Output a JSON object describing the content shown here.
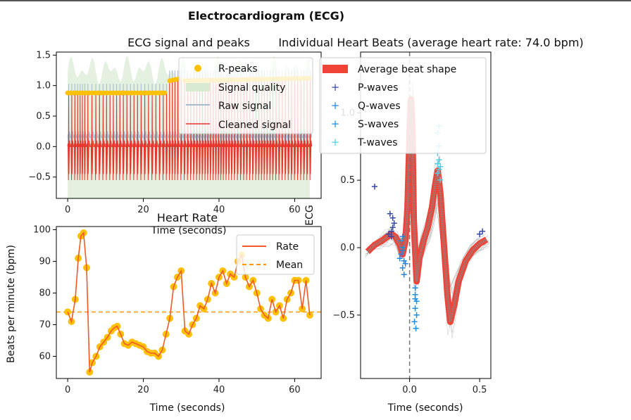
{
  "suptitle": "Electrocardiogram (ECG)",
  "chart_data": [
    {
      "type": "line",
      "title": "ECG signal and peaks",
      "xlabel": "Time (seconds)",
      "ylabel": "",
      "xlim": [
        -3,
        67
      ],
      "ylim": [
        -0.85,
        1.55
      ],
      "xticks": [
        "0",
        "20",
        "40",
        "60"
      ],
      "yticks": [
        "−0.5",
        "0.0",
        "0.5",
        "1.0",
        "1.5"
      ],
      "legend": [
        "R-peaks",
        "Signal quality",
        "Raw signal",
        "Cleaned signal"
      ],
      "legend_position": "upper right",
      "colors": {
        "rpeaks": "#FFC107",
        "quality": "#d9ead3",
        "raw": "#a7bccc",
        "clean": "#e8342a"
      },
      "rpeak_level_segments": [
        {
          "x": [
            0,
            26
          ],
          "y": [
            0.88,
            0.88
          ]
        },
        {
          "x": [
            27,
            30
          ],
          "y": [
            1.08,
            1.12
          ]
        },
        {
          "x": [
            31,
            64
          ],
          "y": [
            1.08,
            1.12
          ]
        }
      ],
      "trough_level": -0.55
    },
    {
      "type": "line",
      "title": "Heart Rate",
      "xlabel": "Time (seconds)",
      "ylabel": "Beats per minute (bpm)",
      "xlim": [
        -3,
        67
      ],
      "ylim": [
        53,
        101
      ],
      "xticks": [
        "0",
        "20",
        "40",
        "60"
      ],
      "yticks": [
        "60",
        "70",
        "80",
        "90",
        "100"
      ],
      "legend": [
        "Rate",
        "Mean"
      ],
      "legend_position": "upper right",
      "mean": 74.0,
      "colors": {
        "rate": "#f05a28",
        "points": "#FFC107",
        "mean": "#ff9800"
      },
      "x": [
        0,
        1,
        2,
        2.8,
        3.5,
        4.2,
        5,
        5.8,
        6.5,
        7.5,
        8.5,
        9.5,
        10.5,
        11.5,
        12.3,
        13.1,
        14,
        15,
        16,
        17,
        18,
        19,
        20,
        21,
        22,
        23,
        24,
        25,
        26,
        27,
        28,
        29,
        30,
        31,
        32,
        33,
        34,
        35,
        36,
        37,
        38,
        39,
        40,
        41,
        42,
        43,
        44,
        45,
        46,
        47,
        48,
        49,
        50,
        51,
        52,
        53,
        54,
        55,
        56,
        57,
        58,
        59,
        60,
        61,
        62,
        63,
        64
      ],
      "values": [
        74,
        71,
        78,
        91,
        98,
        99,
        88,
        55,
        58,
        60,
        63,
        64.5,
        66,
        68,
        69,
        69.5,
        67,
        64,
        63.5,
        64.5,
        64,
        63.5,
        63,
        61.5,
        61,
        61,
        60,
        62,
        67,
        72,
        82,
        85,
        87,
        68,
        67,
        70,
        72,
        76,
        75,
        78,
        83,
        80,
        85,
        87,
        83,
        86,
        85,
        90,
        92,
        85,
        82,
        84,
        80,
        75,
        73,
        72,
        78,
        74,
        76,
        72,
        78,
        80,
        84,
        84,
        75,
        84,
        73
      ]
    },
    {
      "type": "line",
      "title": "Individual Heart Beats (average heart rate: 74.0 bpm)",
      "xlabel": "Time (seconds)",
      "ylabel": "ECG",
      "xlim": [
        -0.35,
        0.58
      ],
      "ylim": [
        -0.97,
        1.45
      ],
      "xticks": [
        "0.0",
        "0.5"
      ],
      "yticks": [
        "−0.5",
        "0.0",
        "0.5",
        "1.0"
      ],
      "legend": [
        "Average beat shape",
        "P-waves",
        "Q-waves",
        "S-waves",
        "T-waves"
      ],
      "legend_position": "upper right",
      "colors": {
        "avg": "#f04438",
        "beats": "#9e9e9e",
        "p": "#3949ab",
        "q": "#1e88e5",
        "s": "#1e90e8",
        "t": "#4dd0e1"
      },
      "avg_x": [
        -0.3,
        -0.25,
        -0.2,
        -0.16,
        -0.13,
        -0.1,
        -0.07,
        -0.05,
        -0.03,
        -0.015,
        0,
        0.01,
        0.02,
        0.03,
        0.05,
        0.07,
        0.1,
        0.13,
        0.16,
        0.18,
        0.2,
        0.22,
        0.24,
        0.27,
        0.29,
        0.32,
        0.35,
        0.4,
        0.45,
        0.5,
        0.55
      ],
      "avg_y": [
        -0.03,
        0.02,
        0.05,
        0.08,
        0.1,
        0.08,
        0.02,
        -0.05,
        0.05,
        0.3,
        0.85,
        1.1,
        0.9,
        0.2,
        -0.25,
        -0.08,
        0.05,
        0.15,
        0.3,
        0.45,
        0.57,
        0.4,
        0.1,
        -0.35,
        -0.55,
        -0.42,
        -0.25,
        -0.1,
        -0.02,
        0.03,
        0.06
      ],
      "p_waves": {
        "x": [
          -0.25,
          -0.14,
          -0.13,
          -0.12,
          -0.11,
          -0.13,
          -0.12,
          -0.15,
          0.5,
          0.52
        ],
        "y": [
          0.45,
          0.25,
          0.12,
          0.15,
          0.18,
          0.08,
          0.22,
          0.1,
          0.1,
          0.12
        ]
      },
      "q_waves": {
        "x": [
          -0.06,
          -0.05,
          -0.04,
          -0.05,
          -0.06,
          -0.04,
          -0.05,
          -0.07,
          -0.03,
          -0.05
        ],
        "y": [
          -0.05,
          0.0,
          -0.1,
          -0.15,
          0.05,
          -0.2,
          0.08,
          -0.08,
          -0.12,
          -0.02
        ]
      },
      "s_waves": {
        "x": [
          0.04,
          0.04,
          0.05,
          0.04,
          0.05,
          0.035,
          0.045,
          0.04
        ],
        "y": [
          -0.3,
          -0.35,
          -0.4,
          -0.45,
          -0.5,
          -0.55,
          -0.6,
          -0.38
        ]
      },
      "t_waves": {
        "x": [
          0.2,
          0.21,
          0.2,
          0.22,
          0.21,
          0.2,
          0.21,
          0.22,
          0.2,
          0.21
        ],
        "y": [
          0.85,
          0.75,
          0.7,
          0.6,
          0.65,
          0.55,
          0.9,
          0.5,
          0.62,
          0.58
        ]
      }
    }
  ]
}
